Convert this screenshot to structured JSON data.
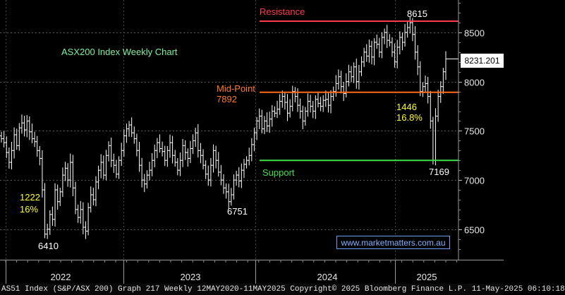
{
  "chart_data": {
    "type": "bar",
    "title": "ASX200 Index Weekly Chart",
    "ylim": [
      6230,
      8800
    ],
    "y_ticks": [
      6500,
      7000,
      7500,
      8000,
      8500
    ],
    "x_labels": [
      "2022",
      "2023",
      "2024",
      "2025"
    ],
    "last_price": "8231.201",
    "levels": [
      {
        "name": "Resistance",
        "value": 8615,
        "label": "Resistance",
        "color": "#ff3b4e"
      },
      {
        "name": "Mid-Point",
        "value": 7892,
        "label": "Mid-Point",
        "label2": "7892",
        "color": "#ff6a1a"
      },
      {
        "name": "Support",
        "value": 7200,
        "label": "Support",
        "color": "#3ee04a"
      }
    ],
    "annotations": [
      {
        "text": "8615"
      },
      {
        "text": "1446",
        "text2": "16.8%"
      },
      {
        "text": "7169"
      },
      {
        "text": "6751"
      },
      {
        "text": "1222",
        "text2": "16%"
      },
      {
        "text": "6410"
      }
    ],
    "closes": [
      7420,
      7380,
      7280,
      7180,
      7300,
      7460,
      7350,
      7530,
      7580,
      7510,
      7600,
      7490,
      7420,
      7390,
      7300,
      7220,
      6900,
      6450,
      6500,
      6650,
      6600,
      6900,
      6780,
      6880,
      7050,
      7120,
      7000,
      7180,
      6920,
      6700,
      6620,
      6700,
      6520,
      6480,
      6720,
      6850,
      6800,
      6980,
      7100,
      7180,
      7050,
      7250,
      7350,
      7200,
      7150,
      7060,
      7200,
      7300,
      7450,
      7520,
      7560,
      7480,
      7420,
      7300,
      7150,
      7000,
      6960,
      7050,
      7100,
      7200,
      7300,
      7380,
      7320,
      7290,
      7200,
      7300,
      7380,
      7250,
      7180,
      7100,
      7200,
      7350,
      7280,
      7220,
      7320,
      7400,
      7480,
      7300,
      7250,
      7150,
      7060,
      7000,
      7150,
      7300,
      7200,
      7080,
      7000,
      6920,
      6880,
      6780,
      6850,
      7000,
      7050,
      6990,
      7100,
      7160,
      7200,
      7250,
      7360,
      7480,
      7600,
      7650,
      7520,
      7600,
      7550,
      7620,
      7700,
      7680,
      7720,
      7800,
      7850,
      7790,
      7680,
      7750,
      7900,
      7850,
      7760,
      7700,
      7600,
      7700,
      7800,
      7750,
      7700,
      7820,
      7780,
      7750,
      7810,
      7820,
      7760,
      7850,
      7900,
      7980,
      8050,
      7950,
      7880,
      8000,
      8100,
      8050,
      8150,
      8000,
      8100,
      8200,
      8300,
      8260,
      8360,
      8250,
      8400,
      8380,
      8300,
      8450,
      8500,
      8420,
      8400,
      8300,
      8200,
      8350,
      8450,
      8400,
      8500,
      8550,
      8600,
      8480,
      8300,
      8150,
      7900,
      7950,
      7980,
      7850,
      7600,
      7200,
      7650,
      7850,
      7950,
      8100,
      8231
    ]
  },
  "footer": {
    "text": "AS51 Index (S&P/ASX 200) Graph 217  Weekly 12MAY2020-11MAY2025  Copyright© 2025 Bloomberg Finance L.P.  11-May-2025 06:10:18"
  },
  "website": "www.marketmatters.com.au",
  "colors": {
    "bars": "#ffffff",
    "axis_text": "#e6e6e6",
    "title": "#7ff0a0",
    "annotation": "#ffff2a"
  }
}
